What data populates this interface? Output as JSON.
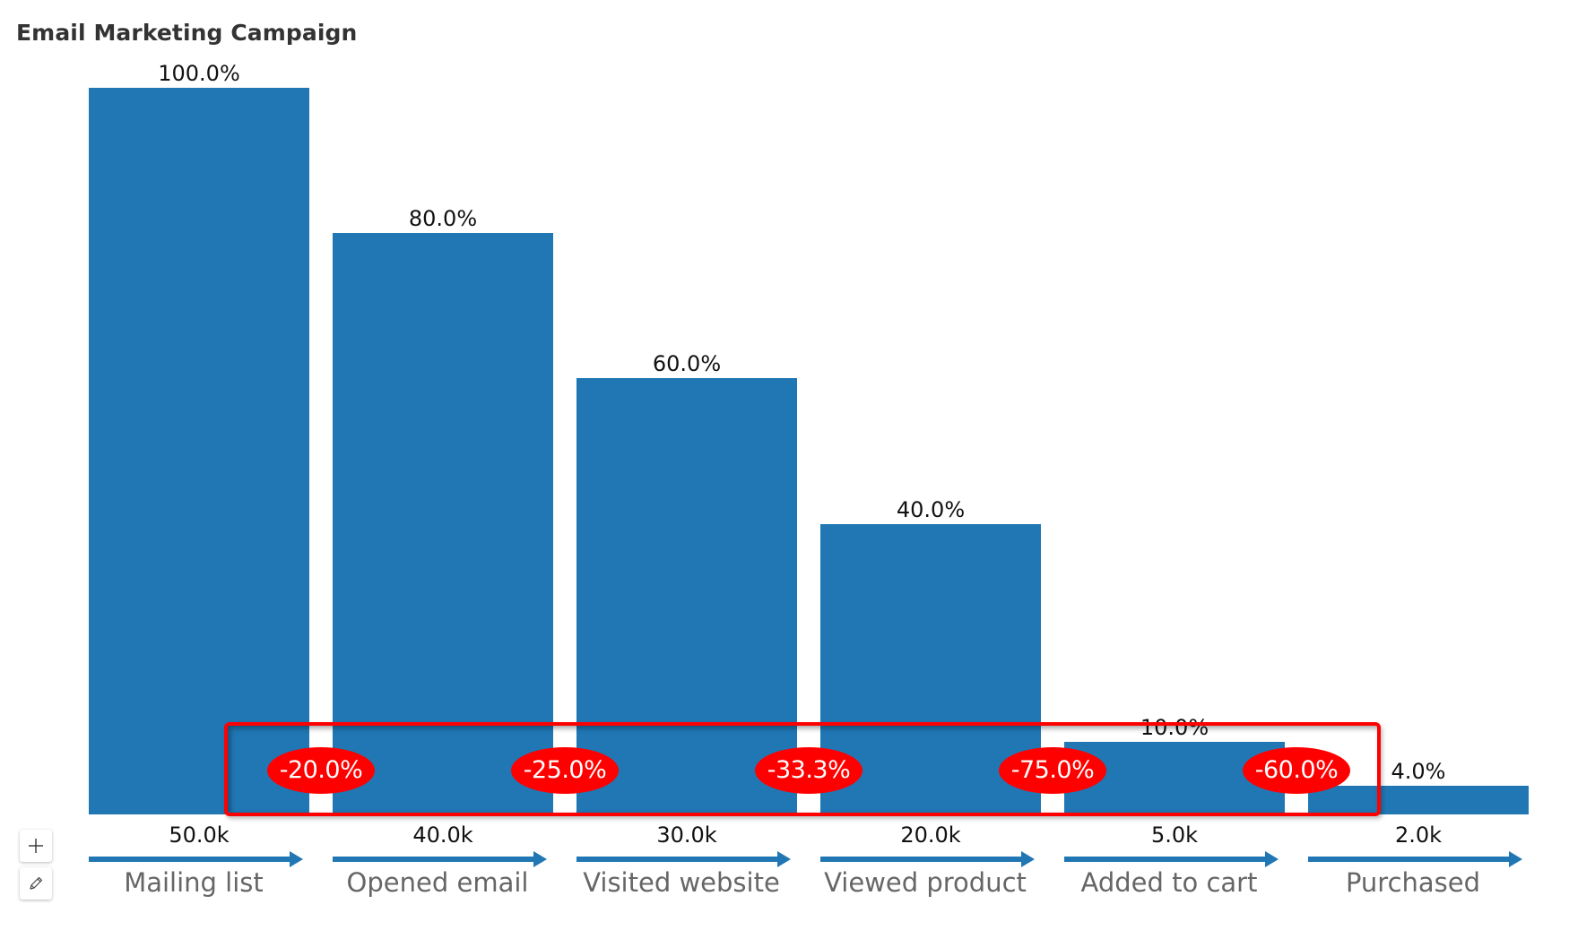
{
  "title": "Email Marketing Campaign",
  "colors": {
    "bar": "#2077b4",
    "highlight": "#ff0000",
    "badge_text": "#ffffff",
    "category_text": "#666666"
  },
  "toolbar": {
    "buttons": [
      {
        "name": "zoom-in",
        "icon": "plus-icon"
      },
      {
        "name": "edit",
        "icon": "pencil-icon"
      }
    ]
  },
  "chart_data": {
    "type": "bar",
    "title": "Email Marketing Campaign",
    "subtype": "funnel",
    "categories": [
      "Mailing list",
      "Opened email",
      "Visited website",
      "Viewed product",
      "Added to cart",
      "Purchased"
    ],
    "values": [
      50000,
      40000,
      30000,
      20000,
      5000,
      2000
    ],
    "value_labels": [
      "50.0k",
      "40.0k",
      "30.0k",
      "20.0k",
      "5.0k",
      "2.0k"
    ],
    "percent_of_total": [
      100.0,
      80.0,
      60.0,
      40.0,
      10.0,
      4.0
    ],
    "percent_labels": [
      "100.0%",
      "80.0%",
      "60.0%",
      "40.0%",
      "10.0%",
      "4.0%"
    ],
    "step_change": [
      -20.0,
      -25.0,
      -33.3,
      -75.0,
      -60.0
    ],
    "step_change_labels": [
      "-20.0%",
      "-25.0%",
      "-33.3%",
      "-75.0%",
      "-60.0%"
    ],
    "xlabel": "",
    "ylabel": "",
    "ylim": [
      0,
      100
    ],
    "grid": false,
    "legend": "none",
    "annotations": [
      "Red rounded rectangle highlights step-change badges between stages"
    ]
  }
}
